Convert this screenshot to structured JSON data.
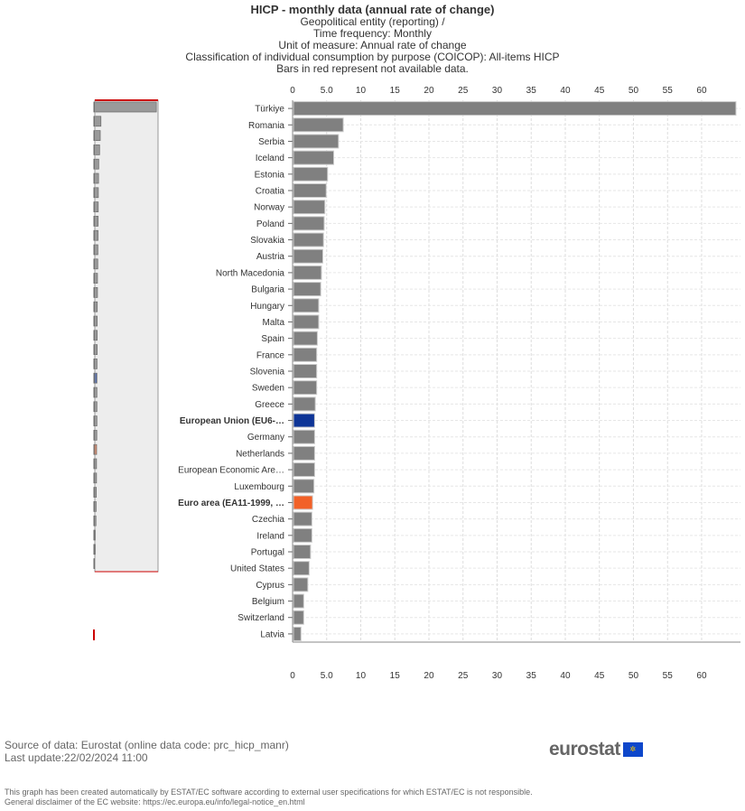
{
  "chart_data": {
    "type": "bar",
    "orientation": "horizontal",
    "title": "HICP - monthly data (annual rate of change)",
    "subtitles": [
      "Geopolitical entity (reporting) /",
      "Time frequency: Monthly",
      "Unit of measure: Annual rate of change",
      "Classification of individual consumption by purpose (COICOP): All-items HICP",
      "Bars in red represent not available data."
    ],
    "xlim": [
      0,
      65.7
    ],
    "ticks": [
      "0",
      "5.0",
      "10",
      "15",
      "20",
      "25",
      "30",
      "35",
      "40",
      "45",
      "50",
      "55",
      "60"
    ],
    "tick_values": [
      0,
      5,
      10,
      15,
      20,
      25,
      30,
      35,
      40,
      45,
      50,
      55,
      60
    ],
    "grid": true,
    "categories": [
      "Türkiye",
      "Romania",
      "Serbia",
      "Iceland",
      "Estonia",
      "Croatia",
      "Norway",
      "Poland",
      "Slovakia",
      "Austria",
      "North Macedonia",
      "Bulgaria",
      "Hungary",
      "Malta",
      "Spain",
      "France",
      "Slovenia",
      "Sweden",
      "Greece",
      "European Union (EU6-…",
      "Germany",
      "Netherlands",
      "European Economic Are…",
      "Luxembourg",
      "Euro area (EA11-1999, …",
      "Czechia",
      "Ireland",
      "Portugal",
      "United States",
      "Cyprus",
      "Belgium",
      "Switzerland",
      "Latvia"
    ],
    "values": [
      64.9,
      7.3,
      6.6,
      5.9,
      5.0,
      4.8,
      4.6,
      4.5,
      4.4,
      4.3,
      4.1,
      4.0,
      3.7,
      3.7,
      3.5,
      3.4,
      3.4,
      3.4,
      3.2,
      3.1,
      3.1,
      3.1,
      3.1,
      3.0,
      2.8,
      2.7,
      2.7,
      2.5,
      2.3,
      2.1,
      1.5,
      1.5,
      1.1
    ],
    "highlight": {
      "19": "#0e3597",
      "24": "#f26128"
    },
    "bold": [
      19,
      24
    ],
    "colors": {
      "default": "#808080",
      "eu": "#0e3597",
      "ea": "#f26128",
      "na": "#cc0000"
    }
  },
  "footer": {
    "source": "Source of data: Eurostat (online data code: prc_hicp_manr)",
    "update": "Last update:22/02/2024 11:00",
    "logo": "eurostat",
    "disclaimer1": "This graph has been created automatically by ESTAT/EC software according to external user specifications for which ESTAT/EC is not responsible.",
    "disclaimer2": "General disclaimer of the EC website: https://ec.europa.eu/info/legal-notice_en.html"
  }
}
